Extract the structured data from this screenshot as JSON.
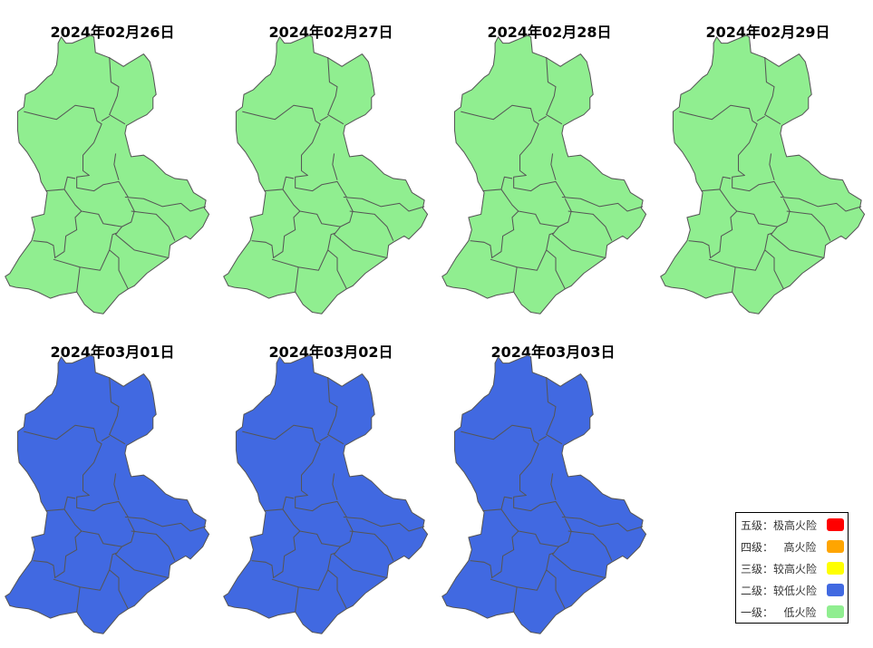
{
  "chart_data": {
    "type": "choropleth-map-series",
    "panels": [
      {
        "title": "2024年02月26日",
        "level": "一级",
        "color": "#90EE90"
      },
      {
        "title": "2024年02月27日",
        "level": "一级",
        "color": "#90EE90"
      },
      {
        "title": "2024年02月28日",
        "level": "一级",
        "color": "#90EE90"
      },
      {
        "title": "2024年02月29日",
        "level": "一级",
        "color": "#90EE90"
      },
      {
        "title": "2024年03月01日",
        "level": "二级",
        "color": "#4169E1"
      },
      {
        "title": "2024年03月02日",
        "level": "二级",
        "color": "#4169E1"
      },
      {
        "title": "2024年03月03日",
        "level": "二级",
        "color": "#4169E1"
      }
    ],
    "legend": {
      "placement": "bottom-right",
      "items": [
        {
          "label": "五级：极高火险",
          "color": "#FF0000"
        },
        {
          "label": "四级：   高火险",
          "color": "#FFA500"
        },
        {
          "label": "三级：较高火险",
          "color": "#FFFF00"
        },
        {
          "label": "二级：较低火险",
          "color": "#4169E1"
        },
        {
          "label": "一级：   低火险",
          "color": "#90EE90"
        }
      ]
    }
  }
}
